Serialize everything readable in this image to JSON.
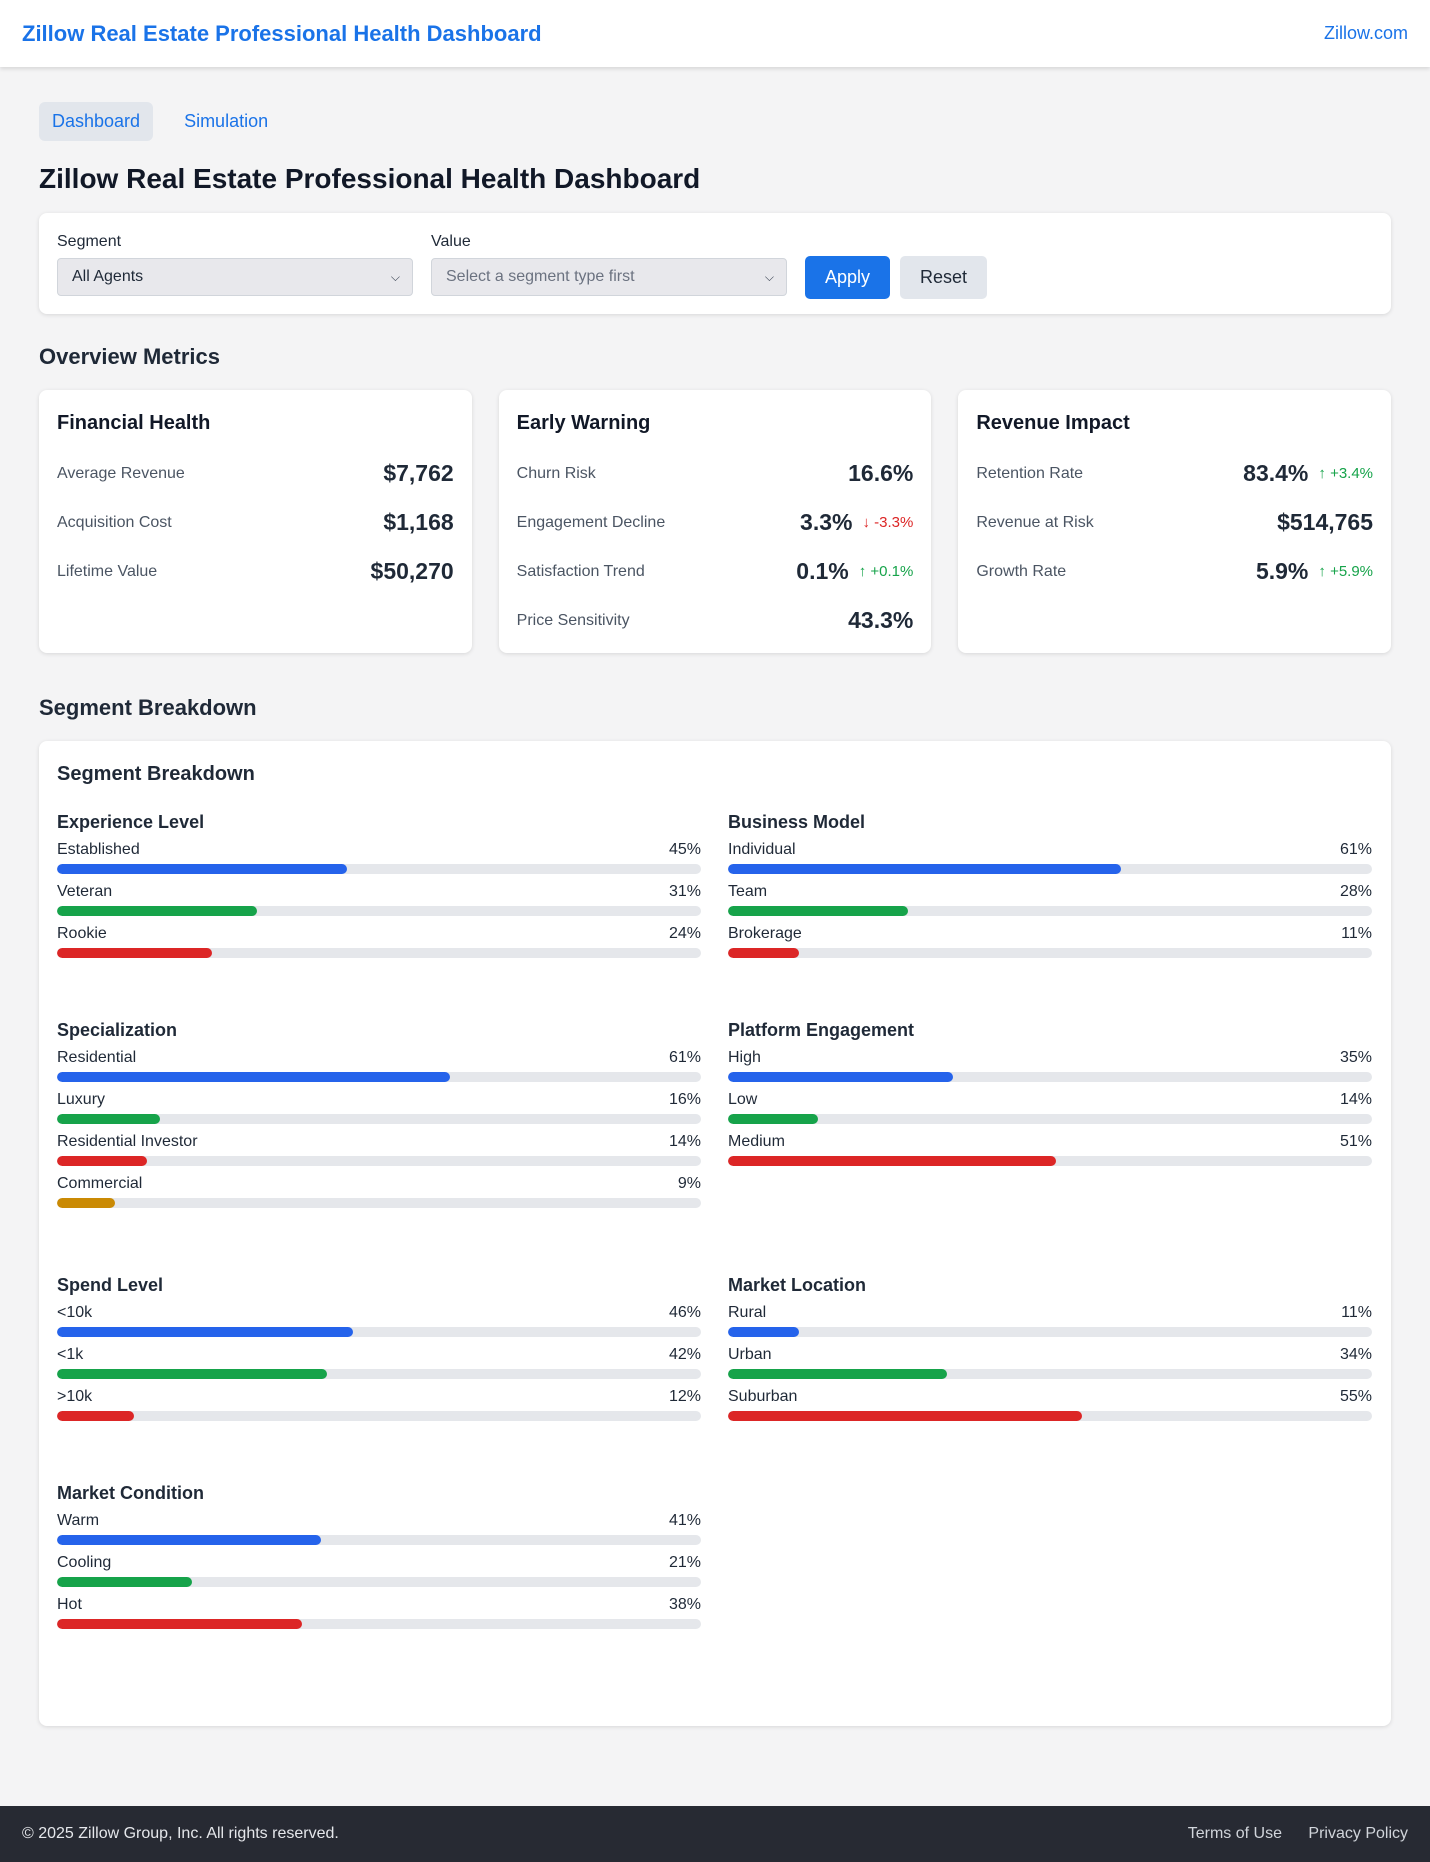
{
  "header": {
    "brand": "Zillow Real Estate Professional Health Dashboard",
    "link": "Zillow.com"
  },
  "tabs": [
    {
      "label": "Dashboard",
      "active": true
    },
    {
      "label": "Simulation",
      "active": false
    }
  ],
  "page_title": "Zillow Real Estate Professional Health Dashboard",
  "filters": {
    "segment_label": "Segment",
    "segment_value": "All Agents",
    "value_label": "Value",
    "value_placeholder": "Select a segment type first",
    "apply_label": "Apply",
    "reset_label": "Reset"
  },
  "overview": {
    "title": "Overview Metrics",
    "cards": [
      {
        "title": "Financial Health",
        "rows": [
          {
            "label": "Average Revenue",
            "value": "$7,762",
            "delta": "",
            "dir": ""
          },
          {
            "label": "Acquisition Cost",
            "value": "$1,168",
            "delta": "",
            "dir": ""
          },
          {
            "label": "Lifetime Value",
            "value": "$50,270",
            "delta": "",
            "dir": ""
          }
        ]
      },
      {
        "title": "Early Warning",
        "rows": [
          {
            "label": "Churn Risk",
            "value": "16.6%",
            "delta": "",
            "dir": ""
          },
          {
            "label": "Engagement Decline",
            "value": "3.3%",
            "delta": "-3.3%",
            "dir": "down"
          },
          {
            "label": "Satisfaction Trend",
            "value": "0.1%",
            "delta": "+0.1%",
            "dir": "up"
          },
          {
            "label": "Price Sensitivity",
            "value": "43.3%",
            "delta": "",
            "dir": ""
          }
        ]
      },
      {
        "title": "Revenue Impact",
        "rows": [
          {
            "label": "Retention Rate",
            "value": "83.4%",
            "delta": "+3.4%",
            "dir": "up"
          },
          {
            "label": "Revenue at Risk",
            "value": "$514,765",
            "delta": "",
            "dir": ""
          },
          {
            "label": "Growth Rate",
            "value": "5.9%",
            "delta": "+5.9%",
            "dir": "up"
          }
        ]
      }
    ]
  },
  "breakdown": {
    "section_title": "Segment Breakdown",
    "card_title": "Segment Breakdown",
    "colors": [
      "#2563eb",
      "#16a34a",
      "#dc2626",
      "#ca8a04"
    ],
    "groups": [
      {
        "title": "Experience Level",
        "items": [
          {
            "label": "Established",
            "pct": 45,
            "text": "45%"
          },
          {
            "label": "Veteran",
            "pct": 31,
            "text": "31%"
          },
          {
            "label": "Rookie",
            "pct": 24,
            "text": "24%"
          }
        ]
      },
      {
        "title": "Business Model",
        "items": [
          {
            "label": "Individual",
            "pct": 61,
            "text": "61%"
          },
          {
            "label": "Team",
            "pct": 28,
            "text": "28%"
          },
          {
            "label": "Brokerage",
            "pct": 11,
            "text": "11%"
          }
        ]
      },
      {
        "title": "Specialization",
        "items": [
          {
            "label": "Residential",
            "pct": 61,
            "text": "61%"
          },
          {
            "label": "Luxury",
            "pct": 16,
            "text": "16%"
          },
          {
            "label": "Residential Investor",
            "pct": 14,
            "text": "14%"
          },
          {
            "label": "Commercial",
            "pct": 9,
            "text": "9%"
          }
        ]
      },
      {
        "title": "Platform Engagement",
        "items": [
          {
            "label": "High",
            "pct": 35,
            "text": "35%"
          },
          {
            "label": "Low",
            "pct": 14,
            "text": "14%"
          },
          {
            "label": "Medium",
            "pct": 51,
            "text": "51%"
          }
        ]
      },
      {
        "title": "Spend Level",
        "items": [
          {
            "label": "<10k",
            "pct": 46,
            "text": "46%"
          },
          {
            "label": "<1k",
            "pct": 42,
            "text": "42%"
          },
          {
            "label": ">10k",
            "pct": 12,
            "text": "12%"
          }
        ]
      },
      {
        "title": "Market Location",
        "items": [
          {
            "label": "Rural",
            "pct": 11,
            "text": "11%"
          },
          {
            "label": "Urban",
            "pct": 34,
            "text": "34%"
          },
          {
            "label": "Suburban",
            "pct": 55,
            "text": "55%"
          }
        ]
      },
      {
        "title": "Market Condition",
        "items": [
          {
            "label": "Warm",
            "pct": 41,
            "text": "41%"
          },
          {
            "label": "Cooling",
            "pct": 21,
            "text": "21%"
          },
          {
            "label": "Hot",
            "pct": 38,
            "text": "38%"
          }
        ]
      }
    ]
  },
  "footer": {
    "copyright": "© 2025 Zillow Group, Inc. All rights reserved.",
    "links": [
      "Terms of Use",
      "Privacy Policy"
    ]
  }
}
